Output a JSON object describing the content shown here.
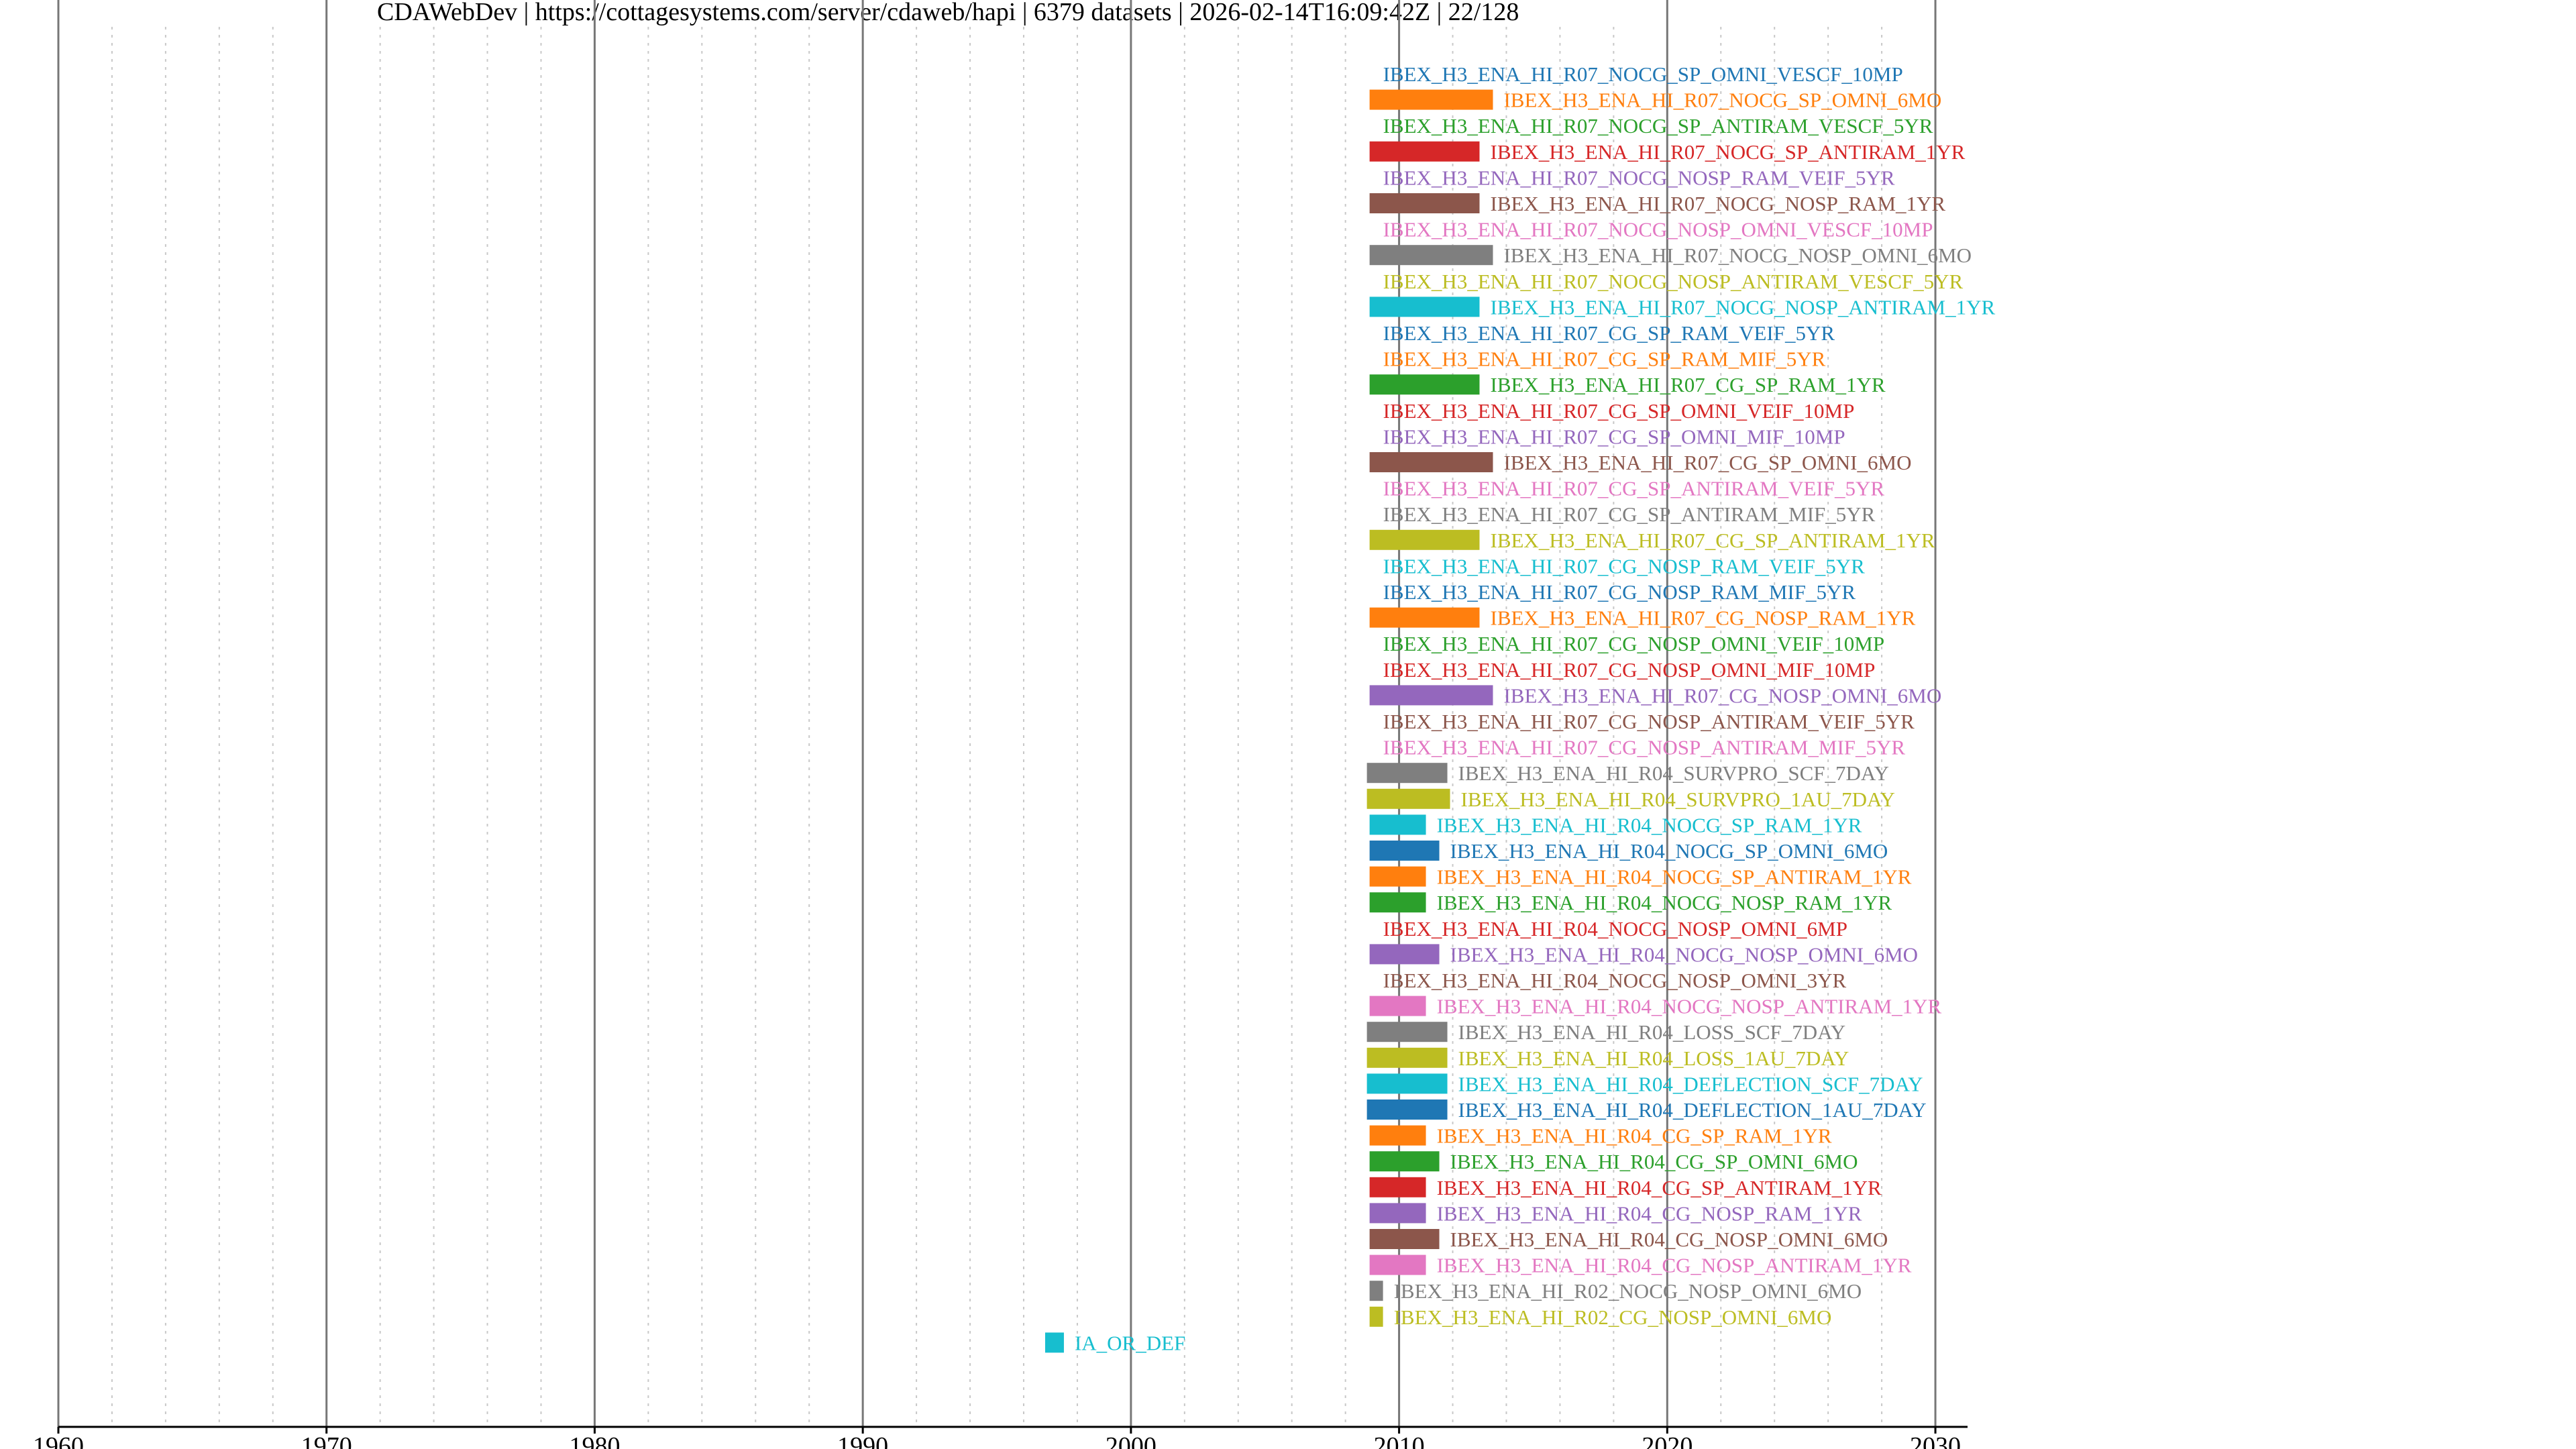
{
  "header": {
    "title": "CDAWebDev | https://cottagesystems.com/server/cdaweb/hapi | 6379 datasets | 2026-02-14T16:09:42Z | 22/128"
  },
  "palette": [
    "#1f77b4",
    "#ff7f0e",
    "#2ca02c",
    "#d62728",
    "#9467bd",
    "#8c564b",
    "#e377c2",
    "#7f7f7f",
    "#bcbd22",
    "#17becf"
  ],
  "chart_data": {
    "type": "bar",
    "orientation": "horizontal-timeline",
    "xlim": [
      1960,
      2031.2
    ],
    "xticks": [
      1960,
      1970,
      1980,
      1990,
      2000,
      2010,
      2020,
      2030
    ],
    "minor_grid_step_years": 2,
    "grid": true,
    "legend": "none",
    "bars": [
      {
        "name": "IBEX_H3_ENA_HI_R07_NOCG_SP_OMNI_VESCF_10MP",
        "start": 2009.0,
        "end": 2009.0
      },
      {
        "name": "IBEX_H3_ENA_HI_R07_NOCG_SP_OMNI_6MO",
        "start": 2008.9,
        "end": 2013.5
      },
      {
        "name": "IBEX_H3_ENA_HI_R07_NOCG_SP_ANTIRAM_VESCF_5YR",
        "start": 2009.0,
        "end": 2009.0
      },
      {
        "name": "IBEX_H3_ENA_HI_R07_NOCG_SP_ANTIRAM_1YR",
        "start": 2008.9,
        "end": 2013.0
      },
      {
        "name": "IBEX_H3_ENA_HI_R07_NOCG_NOSP_RAM_VEIF_5YR",
        "start": 2009.0,
        "end": 2009.0
      },
      {
        "name": "IBEX_H3_ENA_HI_R07_NOCG_NOSP_RAM_1YR",
        "start": 2008.9,
        "end": 2013.0
      },
      {
        "name": "IBEX_H3_ENA_HI_R07_NOCG_NOSP_OMNI_VESCF_10MP",
        "start": 2009.0,
        "end": 2009.0
      },
      {
        "name": "IBEX_H3_ENA_HI_R07_NOCG_NOSP_OMNI_6MO",
        "start": 2008.9,
        "end": 2013.5
      },
      {
        "name": "IBEX_H3_ENA_HI_R07_NOCG_NOSP_ANTIRAM_VESCF_5YR",
        "start": 2009.0,
        "end": 2009.0
      },
      {
        "name": "IBEX_H3_ENA_HI_R07_NOCG_NOSP_ANTIRAM_1YR",
        "start": 2008.9,
        "end": 2013.0
      },
      {
        "name": "IBEX_H3_ENA_HI_R07_CG_SP_RAM_VEIF_5YR",
        "start": 2009.0,
        "end": 2009.0
      },
      {
        "name": "IBEX_H3_ENA_HI_R07_CG_SP_RAM_MIF_5YR",
        "start": 2009.0,
        "end": 2009.0
      },
      {
        "name": "IBEX_H3_ENA_HI_R07_CG_SP_RAM_1YR",
        "start": 2008.9,
        "end": 2013.0
      },
      {
        "name": "IBEX_H3_ENA_HI_R07_CG_SP_OMNI_VEIF_10MP",
        "start": 2009.0,
        "end": 2009.0
      },
      {
        "name": "IBEX_H3_ENA_HI_R07_CG_SP_OMNI_MIF_10MP",
        "start": 2009.0,
        "end": 2009.0
      },
      {
        "name": "IBEX_H3_ENA_HI_R07_CG_SP_OMNI_6MO",
        "start": 2008.9,
        "end": 2013.5
      },
      {
        "name": "IBEX_H3_ENA_HI_R07_CG_SP_ANTIRAM_VEIF_5YR",
        "start": 2009.0,
        "end": 2009.0
      },
      {
        "name": "IBEX_H3_ENA_HI_R07_CG_SP_ANTIRAM_MIF_5YR",
        "start": 2009.0,
        "end": 2009.0
      },
      {
        "name": "IBEX_H3_ENA_HI_R07_CG_SP_ANTIRAM_1YR",
        "start": 2008.9,
        "end": 2013.0
      },
      {
        "name": "IBEX_H3_ENA_HI_R07_CG_NOSP_RAM_VEIF_5YR",
        "start": 2009.0,
        "end": 2009.0
      },
      {
        "name": "IBEX_H3_ENA_HI_R07_CG_NOSP_RAM_MIF_5YR",
        "start": 2009.0,
        "end": 2009.0
      },
      {
        "name": "IBEX_H3_ENA_HI_R07_CG_NOSP_RAM_1YR",
        "start": 2008.9,
        "end": 2013.0
      },
      {
        "name": "IBEX_H3_ENA_HI_R07_CG_NOSP_OMNI_VEIF_10MP",
        "start": 2009.0,
        "end": 2009.0
      },
      {
        "name": "IBEX_H3_ENA_HI_R07_CG_NOSP_OMNI_MIF_10MP",
        "start": 2009.0,
        "end": 2009.0
      },
      {
        "name": "IBEX_H3_ENA_HI_R07_CG_NOSP_OMNI_6MO",
        "start": 2008.9,
        "end": 2013.5
      },
      {
        "name": "IBEX_H3_ENA_HI_R07_CG_NOSP_ANTIRAM_VEIF_5YR",
        "start": 2009.0,
        "end": 2009.0
      },
      {
        "name": "IBEX_H3_ENA_HI_R07_CG_NOSP_ANTIRAM_MIF_5YR",
        "start": 2009.0,
        "end": 2009.0
      },
      {
        "name": "IBEX_H3_ENA_HI_R04_SURVPRO_SCF_7DAY",
        "start": 2008.8,
        "end": 2011.8
      },
      {
        "name": "IBEX_H3_ENA_HI_R04_SURVPRO_1AU_7DAY",
        "start": 2008.8,
        "end": 2011.9
      },
      {
        "name": "IBEX_H3_ENA_HI_R04_NOCG_SP_RAM_1YR",
        "start": 2008.9,
        "end": 2011.0
      },
      {
        "name": "IBEX_H3_ENA_HI_R04_NOCG_SP_OMNI_6MO",
        "start": 2008.9,
        "end": 2011.5
      },
      {
        "name": "IBEX_H3_ENA_HI_R04_NOCG_SP_ANTIRAM_1YR",
        "start": 2008.9,
        "end": 2011.0
      },
      {
        "name": "IBEX_H3_ENA_HI_R04_NOCG_NOSP_RAM_1YR",
        "start": 2008.9,
        "end": 2011.0
      },
      {
        "name": "IBEX_H3_ENA_HI_R04_NOCG_NOSP_OMNI_6MP",
        "start": 2009.0,
        "end": 2009.0
      },
      {
        "name": "IBEX_H3_ENA_HI_R04_NOCG_NOSP_OMNI_6MO",
        "start": 2008.9,
        "end": 2011.5
      },
      {
        "name": "IBEX_H3_ENA_HI_R04_NOCG_NOSP_OMNI_3YR",
        "start": 2009.0,
        "end": 2009.0
      },
      {
        "name": "IBEX_H3_ENA_HI_R04_NOCG_NOSP_ANTIRAM_1YR",
        "start": 2008.9,
        "end": 2011.0
      },
      {
        "name": "IBEX_H3_ENA_HI_R04_LOSS_SCF_7DAY",
        "start": 2008.8,
        "end": 2011.8
      },
      {
        "name": "IBEX_H3_ENA_HI_R04_LOSS_1AU_7DAY",
        "start": 2008.8,
        "end": 2011.8
      },
      {
        "name": "IBEX_H3_ENA_HI_R04_DEFLECTION_SCF_7DAY",
        "start": 2008.8,
        "end": 2011.8
      },
      {
        "name": "IBEX_H3_ENA_HI_R04_DEFLECTION_1AU_7DAY",
        "start": 2008.8,
        "end": 2011.8
      },
      {
        "name": "IBEX_H3_ENA_HI_R04_CG_SP_RAM_1YR",
        "start": 2008.9,
        "end": 2011.0
      },
      {
        "name": "IBEX_H3_ENA_HI_R04_CG_SP_OMNI_6MO",
        "start": 2008.9,
        "end": 2011.5
      },
      {
        "name": "IBEX_H3_ENA_HI_R04_CG_SP_ANTIRAM_1YR",
        "start": 2008.9,
        "end": 2011.0
      },
      {
        "name": "IBEX_H3_ENA_HI_R04_CG_NOSP_RAM_1YR",
        "start": 2008.9,
        "end": 2011.0
      },
      {
        "name": "IBEX_H3_ENA_HI_R04_CG_NOSP_OMNI_6MO",
        "start": 2008.9,
        "end": 2011.5
      },
      {
        "name": "IBEX_H3_ENA_HI_R04_CG_NOSP_ANTIRAM_1YR",
        "start": 2008.9,
        "end": 2011.0
      },
      {
        "name": "IBEX_H3_ENA_HI_R02_NOCG_NOSP_OMNI_6MO",
        "start": 2008.9,
        "end": 2009.4
      },
      {
        "name": "IBEX_H3_ENA_HI_R02_CG_NOSP_OMNI_6MO",
        "start": 2008.9,
        "end": 2009.4
      },
      {
        "name": "IA_OR_DEF",
        "start": 1996.8,
        "end": 1997.5
      }
    ]
  }
}
